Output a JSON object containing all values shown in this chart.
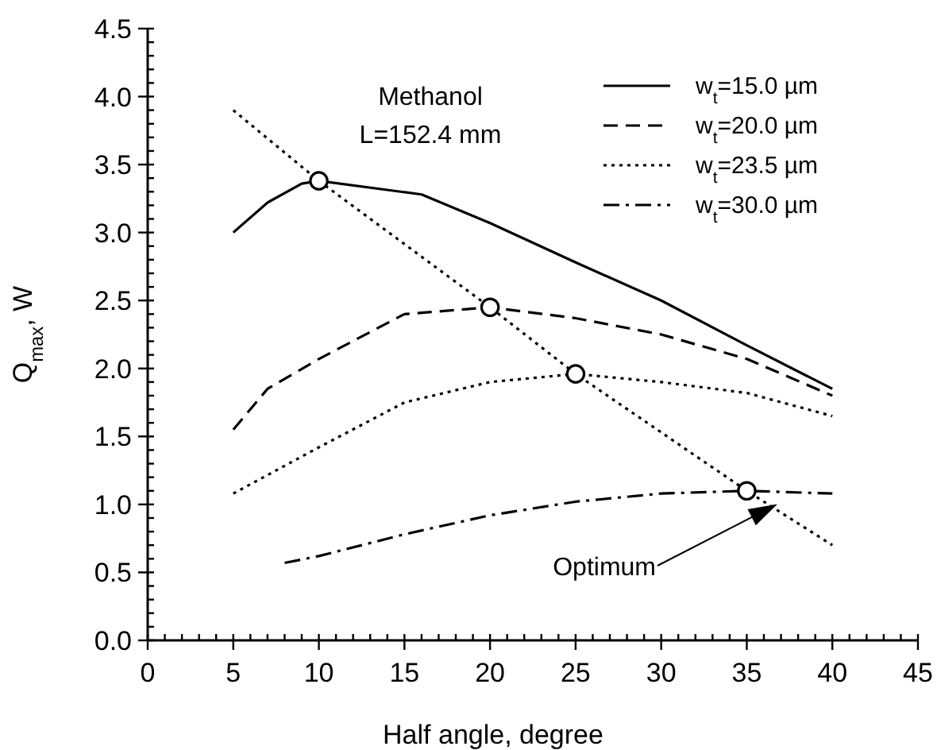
{
  "chart_data": {
    "type": "line",
    "xlabel": "Half angle, degree",
    "ylabel": "Q$_{max}$, W",
    "xlim": [
      0,
      45
    ],
    "ylim": [
      0,
      4.5
    ],
    "xticks": [
      0,
      {
        "value": 1,
        "label": null
      },
      {
        "value": 2,
        "label": null
      },
      {
        "value": 3,
        "label": null
      },
      {
        "value": 4,
        "label": null
      },
      5,
      {
        "value": 6,
        "label": null
      },
      {
        "value": 7,
        "label": null
      },
      {
        "value": 8,
        "label": null
      },
      {
        "value": 9,
        "label": null
      },
      10,
      {
        "value": 11,
        "label": null
      },
      {
        "value": 12,
        "label": null
      },
      {
        "value": 13,
        "label": null
      },
      {
        "value": 14,
        "label": null
      },
      15,
      {
        "value": 16,
        "label": null
      },
      {
        "value": 17,
        "label": null
      },
      {
        "value": 18,
        "label": null
      },
      {
        "value": 19,
        "label": null
      },
      20,
      {
        "value": 21,
        "label": null
      },
      {
        "value": 22,
        "label": null
      },
      {
        "value": 23,
        "label": null
      },
      {
        "value": 24,
        "label": null
      },
      25,
      {
        "value": 26,
        "label": null
      },
      {
        "value": 27,
        "label": null
      },
      {
        "value": 28,
        "label": null
      },
      {
        "value": 29,
        "label": null
      },
      30,
      {
        "value": 31,
        "label": null
      },
      {
        "value": 32,
        "label": null
      },
      {
        "value": 33,
        "label": null
      },
      {
        "value": 34,
        "label": null
      },
      35,
      {
        "value": 36,
        "label": null
      },
      {
        "value": 37,
        "label": null
      },
      {
        "value": 38,
        "label": null
      },
      {
        "value": 39,
        "label": null
      },
      40,
      {
        "value": 41,
        "label": null
      },
      {
        "value": 42,
        "label": null
      },
      {
        "value": 43,
        "label": null
      },
      {
        "value": 44,
        "label": null
      },
      45
    ],
    "yticks": [
      {
        "value": 0,
        "label": "0.0"
      },
      {
        "value": 0.1,
        "label": null
      },
      {
        "value": 0.2,
        "label": null
      },
      {
        "value": 0.3,
        "label": null
      },
      {
        "value": 0.4,
        "label": null
      },
      {
        "value": 0.5,
        "label": "0.5"
      },
      {
        "value": 0.6,
        "label": null
      },
      {
        "value": 0.7,
        "label": null
      },
      {
        "value": 0.8,
        "label": null
      },
      {
        "value": 0.9,
        "label": null
      },
      {
        "value": 1,
        "label": "1.0"
      },
      {
        "value": 1.1,
        "label": null
      },
      {
        "value": 1.2,
        "label": null
      },
      {
        "value": 1.3,
        "label": null
      },
      {
        "value": 1.4,
        "label": null
      },
      {
        "value": 1.5,
        "label": "1.5"
      },
      {
        "value": 1.6,
        "label": null
      },
      {
        "value": 1.7,
        "label": null
      },
      {
        "value": 1.8,
        "label": null
      },
      {
        "value": 1.9,
        "label": null
      },
      {
        "value": 2,
        "label": "2.0"
      },
      {
        "value": 2.1,
        "label": null
      },
      {
        "value": 2.2,
        "label": null
      },
      {
        "value": 2.3,
        "label": null
      },
      {
        "value": 2.4,
        "label": null
      },
      {
        "value": 2.5,
        "label": "2.5"
      },
      {
        "value": 2.6,
        "label": null
      },
      {
        "value": 2.7,
        "label": null
      },
      {
        "value": 2.8,
        "label": null
      },
      {
        "value": 2.9,
        "label": null
      },
      {
        "value": 3,
        "label": "3.0"
      },
      {
        "value": 3.1,
        "label": null
      },
      {
        "value": 3.2,
        "label": null
      },
      {
        "value": 3.3,
        "label": null
      },
      {
        "value": 3.4,
        "label": null
      },
      {
        "value": 3.5,
        "label": "3.5"
      },
      {
        "value": 3.6,
        "label": null
      },
      {
        "value": 3.7,
        "label": null
      },
      {
        "value": 3.8,
        "label": null
      },
      {
        "value": 3.9,
        "label": null
      },
      {
        "value": 4,
        "label": "4.0"
      },
      {
        "value": 4.1,
        "label": null
      },
      {
        "value": 4.2,
        "label": null
      },
      {
        "value": 4.3,
        "label": null
      },
      {
        "value": 4.4,
        "label": null
      },
      {
        "value": 4.5,
        "label": "4.5"
      }
    ],
    "legend": "top right",
    "grid": false,
    "marker": "none",
    "series": [
      {
        "name": "w$_{t}$=15.0 µm",
        "color": "#000000",
        "line_style": "solid",
        "x": [
          5,
          7,
          9,
          10,
          16,
          20,
          25,
          30,
          35,
          40
        ],
        "values": [
          3.0,
          3.22,
          3.36,
          3.38,
          3.28,
          3.07,
          2.78,
          2.5,
          2.17,
          1.85
        ]
      },
      {
        "name": "w$_{t}$=20.0 µm",
        "color": "#000000",
        "line_style": "dashed",
        "x": [
          5,
          7,
          10,
          15,
          20,
          25,
          30,
          35,
          40
        ],
        "values": [
          1.55,
          1.85,
          2.07,
          2.4,
          2.45,
          2.37,
          2.25,
          2.07,
          1.8
        ]
      },
      {
        "name": "w$_{t}$=23.5 µm",
        "color": "#000000",
        "line_style": "dotted",
        "x": [
          5,
          10,
          15,
          20,
          25,
          30,
          35,
          40
        ],
        "values": [
          1.08,
          1.42,
          1.75,
          1.9,
          1.96,
          1.9,
          1.82,
          1.65
        ]
      },
      {
        "name": "w$_{t}$=30.0 µm",
        "color": "#000000",
        "line_style": "dashdot",
        "x": [
          8,
          10,
          15,
          20,
          25,
          30,
          35,
          40
        ],
        "values": [
          0.57,
          0.62,
          0.78,
          0.92,
          1.02,
          1.08,
          1.1,
          1.08
        ]
      },
      {
        "color": "#000000",
        "line_style": "dotted",
        "x": [
          5,
          10,
          20,
          25,
          35,
          40
        ],
        "values": [
          3.9,
          3.38,
          2.45,
          1.96,
          1.1,
          0.7
        ]
      },
      {
        "type": "scatter",
        "marker": "circle",
        "color": "#000000",
        "x": [
          10,
          20,
          25,
          35
        ],
        "values": [
          3.38,
          2.45,
          1.96,
          1.1
        ]
      }
    ],
    "annotations": [
      "Methanol",
      "L=152.4 mm",
      "Optimum"
    ]
  }
}
